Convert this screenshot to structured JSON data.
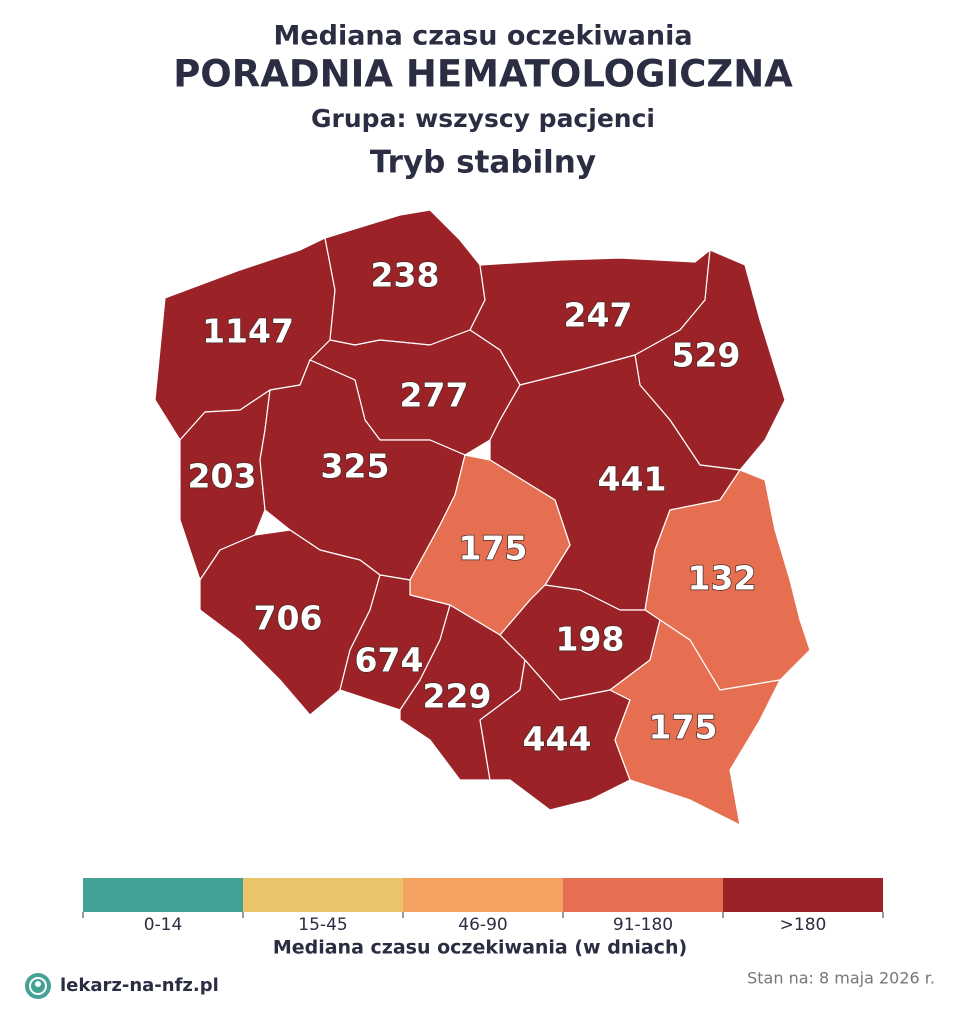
{
  "header": {
    "subtitle": "Mediana czasu oczekiwania",
    "title": "PORADNIA HEMATOLOGICZNA",
    "group": "Grupa: wszyscy pacjenci",
    "mode": "Tryb stabilny"
  },
  "map": {
    "regions": [
      {
        "value": 1147,
        "color": "#9b2226"
      },
      {
        "value": 238,
        "color": "#9b2226"
      },
      {
        "value": 247,
        "color": "#9b2226"
      },
      {
        "value": 529,
        "color": "#9b2226"
      },
      {
        "value": 277,
        "color": "#9b2226"
      },
      {
        "value": 203,
        "color": "#9b2226"
      },
      {
        "value": 325,
        "color": "#9b2226"
      },
      {
        "value": 441,
        "color": "#9b2226"
      },
      {
        "value": 175,
        "color": "#e76f51"
      },
      {
        "value": 132,
        "color": "#e76f51"
      },
      {
        "value": 706,
        "color": "#9b2226"
      },
      {
        "value": 674,
        "color": "#9b2226"
      },
      {
        "value": 229,
        "color": "#9b2226"
      },
      {
        "value": 198,
        "color": "#9b2226"
      },
      {
        "value": 444,
        "color": "#9b2226"
      },
      {
        "value": 175,
        "color": "#e76f51"
      }
    ]
  },
  "legend": {
    "title": "Mediana czasu oczekiwania (w dniach)",
    "items": [
      {
        "label": "0-14",
        "color": "#43a195"
      },
      {
        "label": "15-45",
        "color": "#e9c46a"
      },
      {
        "label": "46-90",
        "color": "#f4a261"
      },
      {
        "label": "91-180",
        "color": "#e76f51"
      },
      {
        "label": ">180",
        "color": "#9b2226"
      }
    ]
  },
  "footer": {
    "brand": "lekarz-na-nfz.pl",
    "date": "Stan na: 8 maja 2026 r."
  }
}
